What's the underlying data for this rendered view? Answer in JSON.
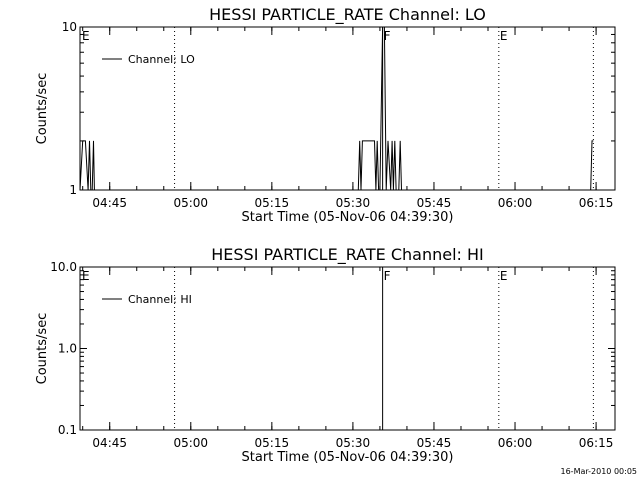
{
  "footer": {
    "timestamp": "16-Mar-2010 00:05"
  },
  "chart_data": [
    {
      "type": "line",
      "title": "HESSI PARTICLE_RATE Channel: LO",
      "xlabel": "Start Time (05-Nov-06 04:39:30)",
      "ylabel": "Counts/sec",
      "yscale": "log",
      "ylim": [
        1,
        10
      ],
      "ytick_values": [
        1,
        10
      ],
      "ytick_labels": [
        "1",
        "10"
      ],
      "xlim": [
        "04:39:30",
        "06:18:30"
      ],
      "xtick_values": [
        "04:45",
        "05:00",
        "05:15",
        "05:30",
        "05:45",
        "06:00",
        "06:15"
      ],
      "xtick_labels": [
        "04:45",
        "05:00",
        "05:15",
        "05:30",
        "05:45",
        "06:00",
        "06:15"
      ],
      "grid": false,
      "legend": {
        "position": "top-left",
        "entries": [
          "Channel: LO"
        ]
      },
      "event_lines": [
        {
          "x": "04:57:00",
          "label": "",
          "style": "dotted"
        },
        {
          "x": "05:35:30",
          "label": "F",
          "style": "solid"
        },
        {
          "x": "05:57:00",
          "label": "E",
          "style": "dotted"
        },
        {
          "x": "06:14:30",
          "label": "",
          "style": "dotted"
        }
      ],
      "corner_labels": [
        {
          "x": "04:39:30",
          "label": "E"
        }
      ],
      "series": [
        {
          "name": "Channel: LO",
          "x": [
            "04:39:30",
            "04:40:00",
            "04:40:30",
            "04:41:00",
            "04:41:15",
            "04:41:30",
            "04:41:45",
            "04:42:00",
            "04:42:10",
            "04:42:20",
            "05:31:00",
            "05:31:15",
            "05:31:30",
            "05:31:45",
            "05:32:00",
            "05:33:00",
            "05:34:00",
            "05:34:15",
            "05:34:30",
            "05:34:45",
            "05:35:00",
            "05:35:30",
            "05:35:50",
            "05:36:10",
            "05:36:30",
            "05:37:00",
            "05:37:15",
            "05:37:30",
            "05:37:45",
            "05:38:00",
            "05:38:30",
            "05:38:45",
            "05:39:00",
            "05:39:15",
            "05:39:30",
            "06:13:45",
            "06:14:00",
            "06:14:15",
            "06:14:30"
          ],
          "y": [
            1,
            2,
            2,
            1,
            2,
            1,
            1,
            2,
            1,
            1,
            1,
            2,
            1,
            2,
            2,
            2,
            2,
            1,
            2,
            1,
            1,
            10,
            10,
            1,
            2,
            1,
            2,
            1,
            2,
            1,
            1,
            2,
            1,
            1,
            1,
            1,
            1,
            2,
            2
          ]
        }
      ]
    },
    {
      "type": "line",
      "title": "HESSI PARTICLE_RATE Channel: HI",
      "xlabel": "Start Time (05-Nov-06 04:39:30)",
      "ylabel": "Counts/sec",
      "yscale": "log",
      "ylim": [
        0.1,
        10
      ],
      "ytick_values": [
        0.1,
        1,
        10
      ],
      "ytick_labels": [
        "0.1",
        "1.0",
        "10.0"
      ],
      "xlim": [
        "04:39:30",
        "06:18:30"
      ],
      "xtick_values": [
        "04:45",
        "05:00",
        "05:15",
        "05:30",
        "05:45",
        "06:00",
        "06:15"
      ],
      "xtick_labels": [
        "04:45",
        "05:00",
        "05:15",
        "05:30",
        "05:45",
        "06:00",
        "06:15"
      ],
      "grid": false,
      "legend": {
        "position": "top-left",
        "entries": [
          "Channel: HI"
        ]
      },
      "event_lines": [
        {
          "x": "04:57:00",
          "label": "",
          "style": "dotted"
        },
        {
          "x": "05:35:30",
          "label": "F",
          "style": "solid"
        },
        {
          "x": "05:57:00",
          "label": "E",
          "style": "dotted"
        },
        {
          "x": "06:14:30",
          "label": "",
          "style": "dotted"
        }
      ],
      "corner_labels": [
        {
          "x": "04:39:30",
          "label": "E"
        }
      ],
      "series": [
        {
          "name": "Channel: HI",
          "x": [
            "05:35:30",
            "05:35:50",
            "05:36:10"
          ],
          "y": [
            10,
            10,
            10
          ]
        }
      ]
    }
  ]
}
